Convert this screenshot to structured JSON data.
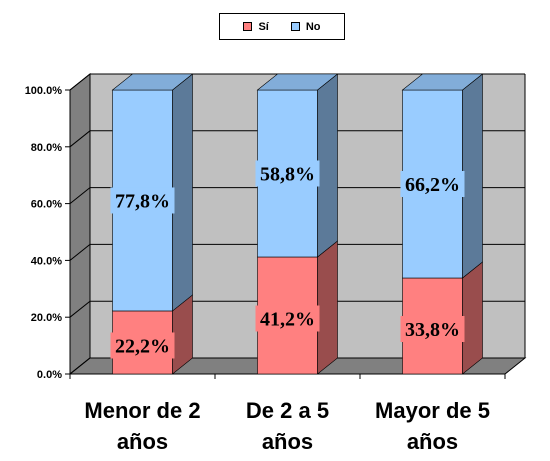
{
  "chart_data": {
    "type": "bar",
    "stacked": true,
    "percent": true,
    "three_d": true,
    "categories": [
      "Menor de 2 años",
      "De 2 a 5 años",
      "Mayor de 5 años"
    ],
    "category_lines": [
      [
        "Menor de 2",
        "años"
      ],
      [
        "De 2 a 5",
        "años"
      ],
      [
        "Mayor de 5",
        "años"
      ]
    ],
    "series": [
      {
        "name": "Sí",
        "values": [
          22.2,
          41.2,
          33.8
        ],
        "labels": [
          "22,2%",
          "41,2%",
          "33,8%"
        ],
        "color": "#ff8080"
      },
      {
        "name": "No",
        "values": [
          77.8,
          58.8,
          66.2
        ],
        "labels": [
          "77,8%",
          "58,8%",
          "66,2%"
        ],
        "color": "#99ccff"
      }
    ],
    "yticks": [
      "0.0%",
      "20.0%",
      "40.0%",
      "60.0%",
      "80.0%",
      "100.0%"
    ],
    "ylim": [
      0,
      100
    ],
    "grid": true,
    "legend_position": "top",
    "wall_color": "#c0c0c0",
    "side_wall_color": "#808080"
  }
}
